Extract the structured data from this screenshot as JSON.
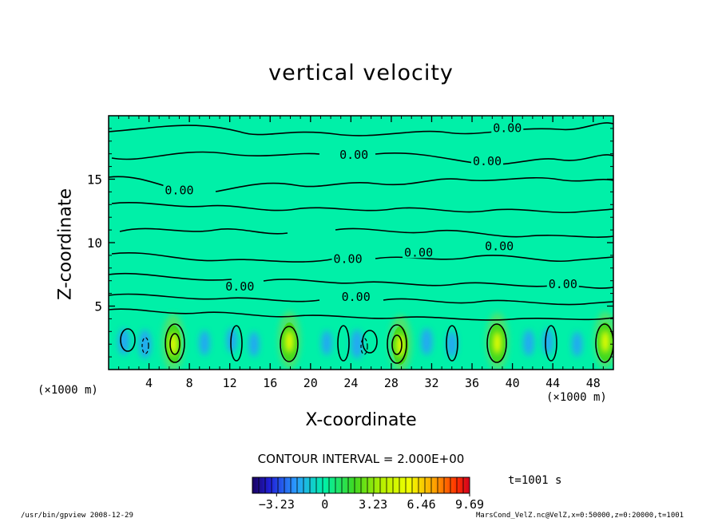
{
  "chart_data": {
    "type": "heatmap",
    "title": "vertical velocity",
    "xlabel": "X-coordinate",
    "ylabel": "Z-coordinate",
    "x_unit_left": "(×1000 m)",
    "x_unit_right": "(×1000 m)",
    "xlim": [
      0,
      50
    ],
    "ylim": [
      0,
      20
    ],
    "x_ticks": [
      4,
      8,
      12,
      16,
      20,
      24,
      28,
      32,
      36,
      40,
      44,
      48
    ],
    "y_ticks": [
      5,
      10,
      15
    ],
    "contour_label": "0.00",
    "contour_interval_text": "CONTOUR INTERVAL = 2.000E+00",
    "colorbar": {
      "min": -4.85,
      "max": 9.69,
      "tick_values": [
        -3.23,
        0,
        3.23,
        6.46,
        9.69
      ],
      "tick_labels": [
        "−3.23",
        "0",
        "3.23",
        "6.46",
        "9.69"
      ]
    },
    "updrafts": [
      {
        "x": 6.4,
        "z": 2.0,
        "w": 8.0
      },
      {
        "x": 17.9,
        "z": 2.2,
        "w": 6.5
      },
      {
        "x": 28.9,
        "z": 1.9,
        "w": 7.0
      },
      {
        "x": 38.5,
        "z": 2.1,
        "w": 7.0
      },
      {
        "x": 49.2,
        "z": 2.2,
        "w": 6.0
      }
    ],
    "downdrafts": [
      {
        "x": 1.5,
        "z": 2.2,
        "w": -2.0
      },
      {
        "x": 3.6,
        "z": 2.0,
        "w": -2.5
      },
      {
        "x": 9.5,
        "z": 2.1,
        "w": -1.5
      },
      {
        "x": 12.2,
        "z": 2.3,
        "w": -1.5
      },
      {
        "x": 14.4,
        "z": 2.0,
        "w": -1.5
      },
      {
        "x": 21.6,
        "z": 2.1,
        "w": -1.5
      },
      {
        "x": 24.6,
        "z": 2.0,
        "w": -2.5
      },
      {
        "x": 31.5,
        "z": 2.2,
        "w": -2.0
      },
      {
        "x": 34.0,
        "z": 2.0,
        "w": -1.8
      },
      {
        "x": 41.6,
        "z": 2.1,
        "w": -1.8
      },
      {
        "x": 43.5,
        "z": 2.2,
        "w": -1.8
      },
      {
        "x": 46.4,
        "z": 2.0,
        "w": -1.5
      }
    ]
  },
  "time_label": "t=1001 s",
  "footer_left": "/usr/bin/gpview   2008-12-29",
  "footer_right": "MarsCond_VelZ.nc@VelZ,x=0:50000,z=0:20000,t=1001",
  "colors": {
    "background": "#00f0a8",
    "updraft_core": "#f0ff00",
    "updraft_mid": "#40d820",
    "downdraft": "#2a9cff"
  }
}
